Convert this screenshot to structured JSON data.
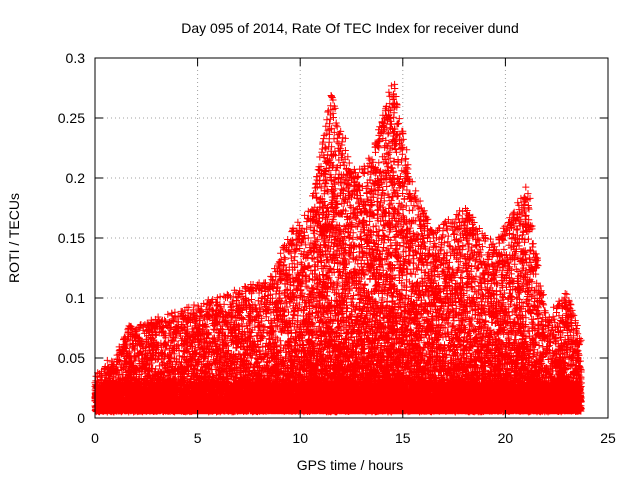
{
  "chart_data": {
    "type": "scatter",
    "title": "Day 095 of 2014, Rate Of TEC Index for receiver dund",
    "xlabel": "GPS time / hours",
    "ylabel": "ROTI / TECUs",
    "xlim": [
      0,
      25
    ],
    "ylim": [
      0,
      0.3
    ],
    "xticks": [
      0,
      5,
      10,
      15,
      20,
      25
    ],
    "xtick_labels": [
      "0",
      "5",
      "10",
      "15",
      "20",
      "25"
    ],
    "yticks": [
      0,
      0.05,
      0.1,
      0.15,
      0.2,
      0.25,
      0.3
    ],
    "ytick_labels": [
      "0",
      "0.05",
      "0.1",
      "0.15",
      "0.2",
      "0.25",
      "0.3"
    ],
    "grid": true,
    "marker": "+",
    "color": "#ff0000",
    "series": [
      {
        "name": "ROTI",
        "envelope_hours": [
          0,
          1,
          1.5,
          2.5,
          4.3,
          6.5,
          8.5,
          9.5,
          10.5,
          11.5,
          12.5,
          13.5,
          14.5,
          15.5,
          16.5,
          18,
          19.5,
          21,
          22,
          23,
          23.7
        ],
        "envelope_roti": [
          0.03,
          0.045,
          0.07,
          0.075,
          0.085,
          0.1,
          0.11,
          0.15,
          0.17,
          0.265,
          0.2,
          0.215,
          0.278,
          0.19,
          0.15,
          0.17,
          0.14,
          0.187,
          0.08,
          0.1,
          0.06
        ],
        "points": [
          [
            0.3,
            0.03
          ],
          [
            0.6,
            0.048
          ],
          [
            1.6,
            0.07
          ],
          [
            2.6,
            0.077
          ],
          [
            3.5,
            0.06
          ],
          [
            4.3,
            0.085
          ],
          [
            4.5,
            0.08
          ],
          [
            5.5,
            0.06
          ],
          [
            6.6,
            0.101
          ],
          [
            6.8,
            0.078
          ],
          [
            7.8,
            0.06
          ],
          [
            8.5,
            0.11
          ],
          [
            9.2,
            0.12
          ],
          [
            9.8,
            0.14
          ],
          [
            10.2,
            0.152
          ],
          [
            10.6,
            0.12
          ],
          [
            10.9,
            0.17
          ],
          [
            11.2,
            0.15
          ],
          [
            11.4,
            0.13
          ],
          [
            11.6,
            0.265
          ],
          [
            11.7,
            0.258
          ],
          [
            11.8,
            0.23
          ],
          [
            11.9,
            0.17
          ],
          [
            12.1,
            0.19
          ],
          [
            12.2,
            0.233
          ],
          [
            12.3,
            0.18
          ],
          [
            12.5,
            0.2
          ],
          [
            12.6,
            0.17
          ],
          [
            12.8,
            0.19
          ],
          [
            13.1,
            0.18
          ],
          [
            13.3,
            0.21
          ],
          [
            13.4,
            0.215
          ],
          [
            13.6,
            0.195
          ],
          [
            13.8,
            0.19
          ],
          [
            14.1,
            0.16
          ],
          [
            14.3,
            0.205
          ],
          [
            14.4,
            0.25
          ],
          [
            14.45,
            0.245
          ],
          [
            14.55,
            0.235
          ],
          [
            14.6,
            0.278
          ],
          [
            14.8,
            0.17
          ],
          [
            15.0,
            0.193
          ],
          [
            15.2,
            0.19
          ],
          [
            15.5,
            0.14
          ],
          [
            15.9,
            0.175
          ],
          [
            16.5,
            0.15
          ],
          [
            17.0,
            0.12
          ],
          [
            17.8,
            0.11
          ],
          [
            18.1,
            0.17
          ],
          [
            18.3,
            0.155
          ],
          [
            18.6,
            0.1
          ],
          [
            19.4,
            0.145
          ],
          [
            19.7,
            0.13
          ],
          [
            20.1,
            0.08
          ],
          [
            20.8,
            0.17
          ],
          [
            21.1,
            0.187
          ],
          [
            21.2,
            0.183
          ],
          [
            21.3,
            0.16
          ],
          [
            21.5,
            0.125
          ],
          [
            21.7,
            0.11
          ],
          [
            22.2,
            0.07
          ],
          [
            22.9,
            0.1
          ],
          [
            23.2,
            0.065
          ],
          [
            23.4,
            0.06
          ],
          [
            23.7,
            0.04
          ]
        ]
      }
    ]
  }
}
